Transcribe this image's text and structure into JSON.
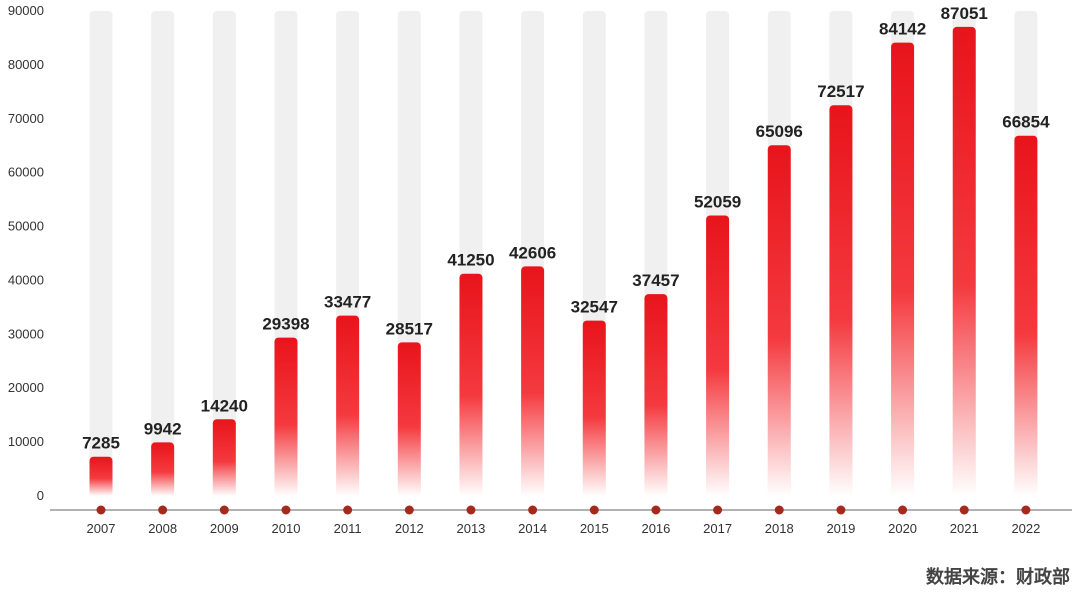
{
  "chart_data": {
    "type": "bar",
    "categories": [
      "2007",
      "2008",
      "2009",
      "2010",
      "2011",
      "2012",
      "2013",
      "2014",
      "2015",
      "2016",
      "2017",
      "2018",
      "2019",
      "2020",
      "2021",
      "2022"
    ],
    "values": [
      7285,
      9942,
      14240,
      29398,
      33477,
      28517,
      41250,
      42606,
      32547,
      37457,
      52059,
      65096,
      72517,
      84142,
      87051,
      66854
    ],
    "yticks": [
      0,
      10000,
      20000,
      30000,
      40000,
      50000,
      60000,
      70000,
      80000,
      90000
    ],
    "ylim": [
      0,
      90000
    ],
    "grid": false,
    "colors": {
      "bar": "#e8141b",
      "track": "#f0f0f0",
      "marker": "#a52a1e",
      "axis": "#999999"
    }
  },
  "source": "数据来源：财政部"
}
